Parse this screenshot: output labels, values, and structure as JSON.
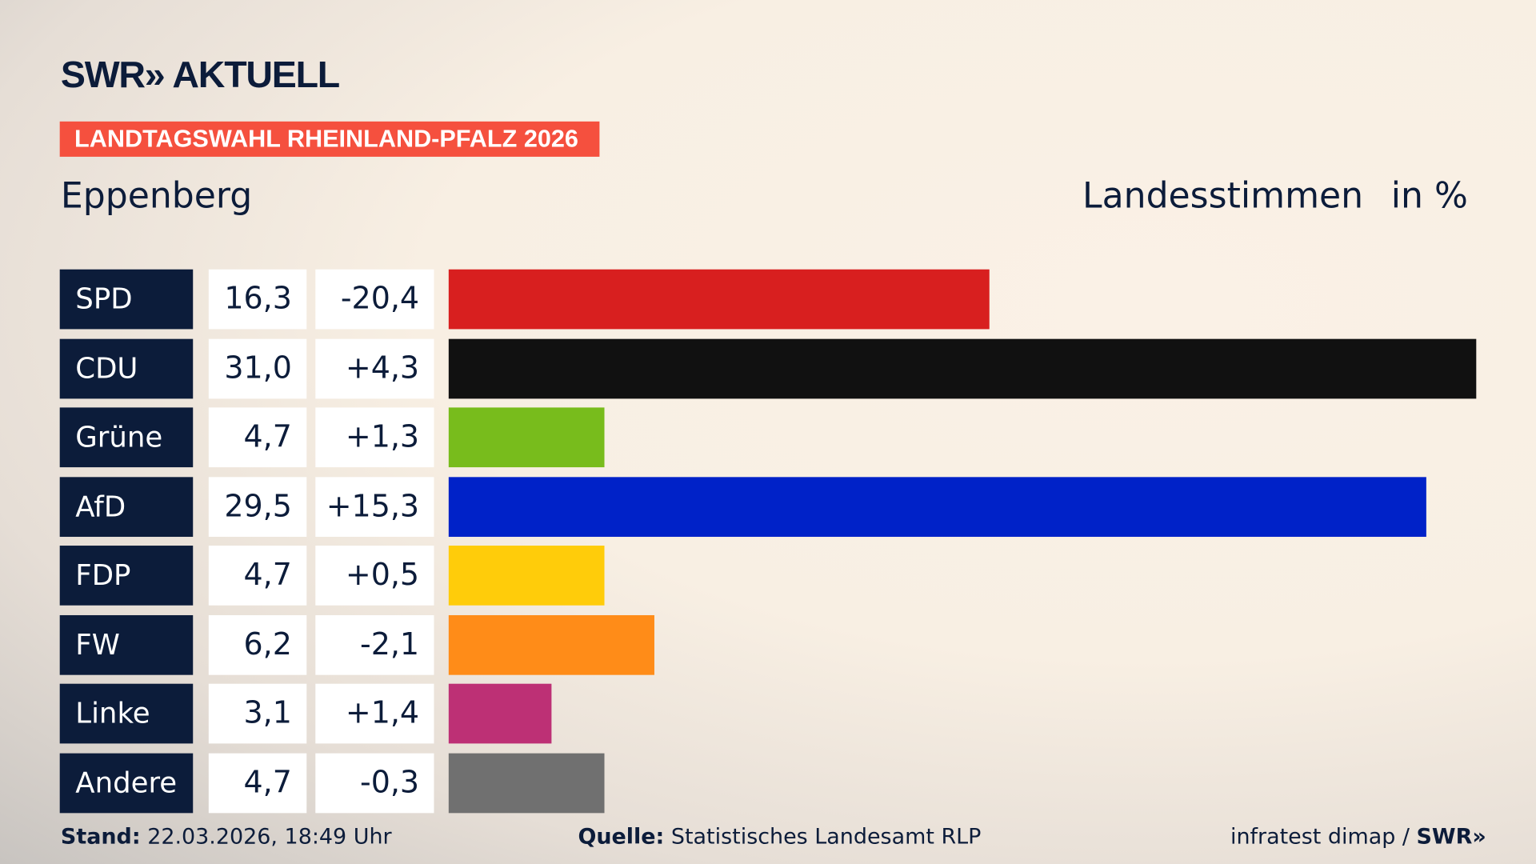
{
  "logo_text": "SWR» AKTUELL",
  "banner": "LANDTAGSWAHL RHEINLAND-PFALZ 2026",
  "place": "Eppenberg",
  "metric": "Landesstimmen",
  "unit": "in %",
  "footer": {
    "stand_label": "Stand:",
    "stand_value": "22.03.2026, 18:49 Uhr",
    "quelle_label": "Quelle:",
    "quelle_value": "Statistisches Landesamt RLP",
    "credit": "infratest dimap / ",
    "credit_logo": "SWR»"
  },
  "chart_data": {
    "type": "bar",
    "orientation": "horizontal",
    "xlim": [
      0,
      31.0
    ],
    "categories": [
      "SPD",
      "CDU",
      "Grüne",
      "AfD",
      "FDP",
      "FW",
      "Linke",
      "Andere"
    ],
    "values": [
      16.3,
      31.0,
      4.7,
      29.5,
      4.7,
      6.2,
      3.1,
      4.7
    ],
    "value_labels": [
      "16,3",
      "31,0",
      "4,7",
      "29,5",
      "4,7",
      "6,2",
      "3,1",
      "4,7"
    ],
    "diff_labels": [
      "-20,4",
      "+4,3",
      "+1,3",
      "+15,3",
      "+0,5",
      "-2,1",
      "+1,4",
      "-0,3"
    ],
    "colors": [
      "#d81f1f",
      "#111111",
      "#78bc1c",
      "#0022c8",
      "#ffcc0a",
      "#ff8c18",
      "#bd3075",
      "#707070"
    ]
  }
}
